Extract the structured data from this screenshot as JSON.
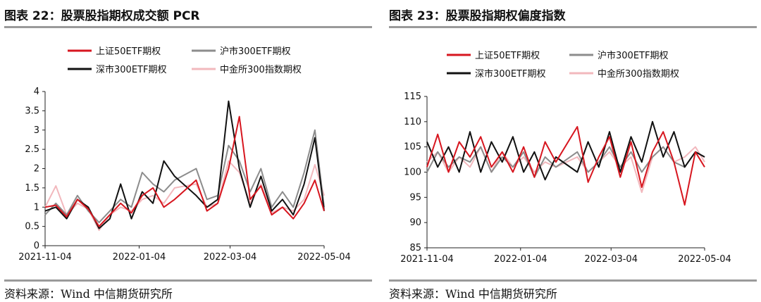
{
  "source_note": "资料来源：Wind 中信期货研究所",
  "chart_data": [
    {
      "figure_title": "图表 22：股票股指期权成交额 PCR",
      "type": "line",
      "x_ticks": [
        "2021-11-04",
        "2022-01-04",
        "2022-03-04",
        "2022-05-04"
      ],
      "x_range": [
        "2021-11-04",
        "2022-05-04"
      ],
      "ylim": [
        0,
        4
      ],
      "y_ticks": [
        "0",
        "0.5",
        "1",
        "1.5",
        "2",
        "2.5",
        "3",
        "3.5",
        "4"
      ],
      "grid": false,
      "legend_position": "top",
      "colors": [
        "#d7161f",
        "#8c8c8c",
        "#111111",
        "#f2b8bd"
      ],
      "series": [
        {
          "name": "上证50ETF期权",
          "x": [
            "2021-11-04",
            "2021-11-11",
            "2021-11-18",
            "2021-11-25",
            "2021-12-02",
            "2021-12-09",
            "2021-12-16",
            "2021-12-23",
            "2021-12-30",
            "2022-01-06",
            "2022-01-13",
            "2022-01-20",
            "2022-01-27",
            "2022-02-10",
            "2022-02-17",
            "2022-02-24",
            "2022-03-03",
            "2022-03-10",
            "2022-03-17",
            "2022-03-24",
            "2022-03-31",
            "2022-04-07",
            "2022-04-14",
            "2022-04-21",
            "2022-04-28",
            "2022-05-04"
          ],
          "values": [
            1.0,
            1.05,
            0.75,
            1.2,
            0.95,
            0.5,
            0.8,
            1.1,
            0.85,
            1.3,
            1.5,
            1.0,
            1.2,
            1.7,
            0.9,
            1.1,
            2.0,
            3.35,
            1.2,
            1.55,
            0.8,
            1.0,
            0.7,
            1.1,
            1.7,
            0.9
          ]
        },
        {
          "name": "沪市300ETF期权",
          "x": [
            "2021-11-04",
            "2021-11-11",
            "2021-11-18",
            "2021-11-25",
            "2021-12-02",
            "2021-12-09",
            "2021-12-16",
            "2021-12-23",
            "2021-12-30",
            "2022-01-06",
            "2022-01-13",
            "2022-01-20",
            "2022-01-27",
            "2022-02-10",
            "2022-02-17",
            "2022-02-24",
            "2022-03-03",
            "2022-03-10",
            "2022-03-17",
            "2022-03-24",
            "2022-03-31",
            "2022-04-07",
            "2022-04-14",
            "2022-04-21",
            "2022-04-28",
            "2022-05-04"
          ],
          "values": [
            0.8,
            1.1,
            0.8,
            1.3,
            0.9,
            0.6,
            0.9,
            1.2,
            1.0,
            1.9,
            1.6,
            1.4,
            1.7,
            2.0,
            1.2,
            1.3,
            2.6,
            2.2,
            1.4,
            2.0,
            1.0,
            1.4,
            1.0,
            1.9,
            3.0,
            1.0
          ]
        },
        {
          "name": "深市300ETF期权",
          "x": [
            "2021-11-04",
            "2021-11-11",
            "2021-11-18",
            "2021-11-25",
            "2021-12-02",
            "2021-12-09",
            "2021-12-16",
            "2021-12-23",
            "2021-12-30",
            "2022-01-06",
            "2022-01-13",
            "2022-01-20",
            "2022-01-27",
            "2022-02-10",
            "2022-02-17",
            "2022-02-24",
            "2022-03-03",
            "2022-03-10",
            "2022-03-17",
            "2022-03-24",
            "2022-03-31",
            "2022-04-07",
            "2022-04-14",
            "2022-04-21",
            "2022-04-28",
            "2022-05-04"
          ],
          "values": [
            0.9,
            1.0,
            0.7,
            1.2,
            1.0,
            0.45,
            0.7,
            1.6,
            0.7,
            1.4,
            1.1,
            2.2,
            1.8,
            1.3,
            1.0,
            1.2,
            3.75,
            2.0,
            1.0,
            1.8,
            0.9,
            1.2,
            0.8,
            1.6,
            2.8,
            0.9
          ]
        },
        {
          "name": "中金所300指数期权",
          "x": [
            "2021-11-04",
            "2021-11-11",
            "2021-11-18",
            "2021-11-25",
            "2021-12-02",
            "2021-12-09",
            "2021-12-16",
            "2021-12-23",
            "2021-12-30",
            "2022-01-06",
            "2022-01-13",
            "2022-01-20",
            "2022-01-27",
            "2022-02-10",
            "2022-02-17",
            "2022-02-24",
            "2022-03-03",
            "2022-03-10",
            "2022-03-17",
            "2022-03-24",
            "2022-03-31",
            "2022-04-07",
            "2022-04-14",
            "2022-04-21",
            "2022-04-28",
            "2022-05-04"
          ],
          "values": [
            1.0,
            1.55,
            0.8,
            1.1,
            0.95,
            0.4,
            0.8,
            1.0,
            0.9,
            1.2,
            1.3,
            1.1,
            1.5,
            1.6,
            1.0,
            1.1,
            2.2,
            1.9,
            1.1,
            1.6,
            0.85,
            1.0,
            0.9,
            1.2,
            2.1,
            1.3
          ]
        }
      ]
    },
    {
      "figure_title": "图表 23：股票股指期权偏度指数",
      "type": "line",
      "x_ticks": [
        "2021-11-04",
        "2022-01-04",
        "2022-03-04",
        "2022-05-04"
      ],
      "x_range": [
        "2021-11-04",
        "2022-05-04"
      ],
      "ylim": [
        85,
        115
      ],
      "y_ticks": [
        "85",
        "90",
        "95",
        "100",
        "105",
        "110",
        "115"
      ],
      "grid": false,
      "legend_position": "top",
      "colors": [
        "#d7161f",
        "#8c8c8c",
        "#111111",
        "#f2b8bd"
      ],
      "series": [
        {
          "name": "上证50ETF期权",
          "x": [
            "2021-11-04",
            "2021-11-11",
            "2021-11-18",
            "2021-11-25",
            "2021-12-02",
            "2021-12-09",
            "2021-12-16",
            "2021-12-23",
            "2021-12-30",
            "2022-01-06",
            "2022-01-13",
            "2022-01-20",
            "2022-01-27",
            "2022-02-10",
            "2022-02-17",
            "2022-02-24",
            "2022-03-03",
            "2022-03-10",
            "2022-03-17",
            "2022-03-24",
            "2022-03-31",
            "2022-04-07",
            "2022-04-14",
            "2022-04-21",
            "2022-04-28",
            "2022-05-04"
          ],
          "values": [
            101,
            107.5,
            100,
            106,
            103,
            107,
            101,
            104,
            100,
            105,
            99,
            106,
            102,
            109,
            98,
            103,
            107,
            99,
            106,
            97,
            104,
            108,
            102,
            93.5,
            104,
            101
          ]
        },
        {
          "name": "沪市300ETF期权",
          "x": [
            "2021-11-04",
            "2021-11-11",
            "2021-11-18",
            "2021-11-25",
            "2021-12-02",
            "2021-12-09",
            "2021-12-16",
            "2021-12-23",
            "2021-12-30",
            "2022-01-06",
            "2022-01-13",
            "2022-01-20",
            "2022-01-27",
            "2022-02-10",
            "2022-02-17",
            "2022-02-24",
            "2022-03-03",
            "2022-03-10",
            "2022-03-17",
            "2022-03-24",
            "2022-03-31",
            "2022-04-07",
            "2022-04-14",
            "2022-04-21",
            "2022-04-28",
            "2022-05-04"
          ],
          "values": [
            100,
            104,
            101,
            103,
            102,
            105,
            100,
            103,
            101,
            104,
            99,
            103,
            101,
            104,
            100,
            102,
            105,
            101,
            104,
            100,
            103,
            105,
            102,
            101,
            104,
            103
          ]
        },
        {
          "name": "深市300ETF期权",
          "x": [
            "2021-11-04",
            "2021-11-11",
            "2021-11-18",
            "2021-11-25",
            "2021-12-02",
            "2021-12-09",
            "2021-12-16",
            "2021-12-23",
            "2021-12-30",
            "2022-01-06",
            "2022-01-13",
            "2022-01-20",
            "2022-01-27",
            "2022-02-10",
            "2022-02-17",
            "2022-02-24",
            "2022-03-03",
            "2022-03-10",
            "2022-03-17",
            "2022-03-24",
            "2022-03-31",
            "2022-04-07",
            "2022-04-14",
            "2022-04-21",
            "2022-04-28",
            "2022-05-04"
          ],
          "values": [
            106,
            101,
            105,
            100,
            108,
            100,
            106,
            102,
            107,
            100,
            104,
            98.5,
            103,
            100,
            106,
            101,
            108,
            100,
            107,
            102,
            110,
            103,
            108,
            101,
            104,
            103
          ]
        },
        {
          "name": "中金所300指数期权",
          "x": [
            "2021-11-04",
            "2021-11-11",
            "2021-11-18",
            "2021-11-25",
            "2021-12-02",
            "2021-12-09",
            "2021-12-16",
            "2021-12-23",
            "2021-12-30",
            "2022-01-06",
            "2022-01-13",
            "2022-01-20",
            "2022-01-27",
            "2022-02-10",
            "2022-02-17",
            "2022-02-24",
            "2022-03-03",
            "2022-03-10",
            "2022-03-17",
            "2022-03-24",
            "2022-03-31",
            "2022-04-07",
            "2022-04-14",
            "2022-04-21",
            "2022-04-28",
            "2022-05-04"
          ],
          "values": [
            102,
            104,
            100,
            103,
            101,
            105,
            100,
            104,
            101,
            103,
            100,
            102,
            101,
            103,
            100,
            102,
            104,
            101,
            103,
            96,
            103,
            105,
            102,
            103,
            105,
            102
          ]
        }
      ]
    }
  ]
}
